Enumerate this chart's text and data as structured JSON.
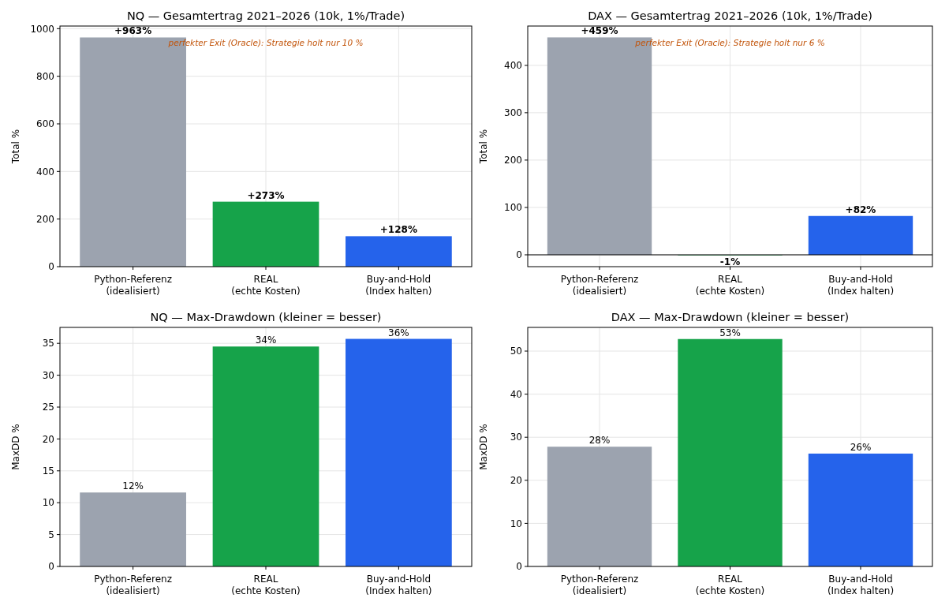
{
  "chart_data": [
    {
      "type": "bar",
      "title": "NQ — Gesamtertrag 2021–2026 (10k, 1%/Trade)",
      "ylabel": "Total %",
      "categories": [
        "Python-Referenz\n(idealisiert)",
        "REAL\n(echte Kosten)",
        "Buy-and-Hold\n(Index halten)"
      ],
      "values": [
        963,
        273,
        128
      ],
      "colors": [
        "#9ca3af",
        "#16a34a",
        "#2563eb"
      ],
      "value_labels": [
        "+963%",
        "+273%",
        "+128%"
      ],
      "ylim": [
        0,
        1011
      ],
      "yticks": [
        0,
        200,
        400,
        600,
        800,
        1000
      ],
      "grid": true,
      "annotations": [
        "perfekter Exit (Oracle): Strategie holt nur 10 %"
      ]
    },
    {
      "type": "bar",
      "title": "DAX — Gesamtertrag 2021–2026 (10k, 1%/Trade)",
      "ylabel": "Total %",
      "categories": [
        "Python-Referenz\n(idealisiert)",
        "REAL\n(echte Kosten)",
        "Buy-and-Hold\n(Index halten)"
      ],
      "values": [
        459,
        -1,
        82
      ],
      "colors": [
        "#9ca3af",
        "#16a34a",
        "#2563eb"
      ],
      "value_labels": [
        "+459%",
        "-1%",
        "+82%"
      ],
      "ylim": [
        -25,
        483
      ],
      "yticks": [
        0,
        100,
        200,
        300,
        400
      ],
      "grid": true,
      "ref_lines": [
        {
          "axis": "y",
          "value": 0,
          "color": "#000000"
        }
      ],
      "annotations": [
        "perfekter Exit (Oracle): Strategie holt nur 6 %"
      ]
    },
    {
      "type": "bar",
      "title": "NQ — Max-Drawdown (kleiner = besser)",
      "ylabel": "MaxDD %",
      "categories": [
        "Python-Referenz\n(idealisiert)",
        "REAL\n(echte Kosten)",
        "Buy-and-Hold\n(Index halten)"
      ],
      "values": [
        11.6,
        34.5,
        35.7
      ],
      "colors": [
        "#9ca3af",
        "#16a34a",
        "#2563eb"
      ],
      "value_labels": [
        "12%",
        "34%",
        "36%"
      ],
      "ylim": [
        0,
        37.5
      ],
      "yticks": [
        0,
        5,
        10,
        15,
        20,
        25,
        30,
        35
      ],
      "grid": true
    },
    {
      "type": "bar",
      "title": "DAX — Max-Drawdown (kleiner = besser)",
      "ylabel": "MaxDD %",
      "categories": [
        "Python-Referenz\n(idealisiert)",
        "REAL\n(echte Kosten)",
        "Buy-and-Hold\n(Index halten)"
      ],
      "values": [
        27.8,
        52.8,
        26.2
      ],
      "colors": [
        "#9ca3af",
        "#16a34a",
        "#2563eb"
      ],
      "value_labels": [
        "28%",
        "53%",
        "26%"
      ],
      "ylim": [
        0,
        55.5
      ],
      "yticks": [
        0,
        10,
        20,
        30,
        40,
        50
      ],
      "grid": true
    }
  ]
}
